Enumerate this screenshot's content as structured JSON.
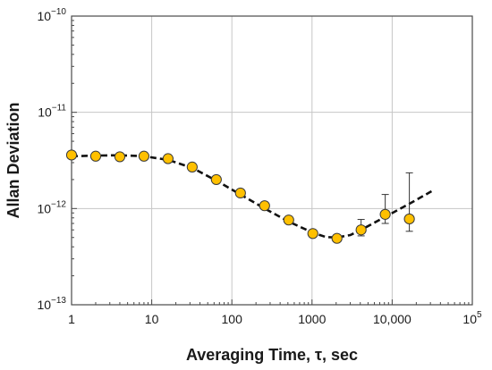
{
  "chart_data": {
    "type": "scatter",
    "title": "",
    "xlabel": "Averaging Time, τ, sec",
    "ylabel": "Allan Deviation",
    "x_scale": "log",
    "y_scale": "log",
    "xlim": [
      1,
      100000
    ],
    "ylim": [
      1e-13,
      1e-10
    ],
    "grid": true,
    "legend": "none",
    "x_ticks": [
      {
        "value": 1,
        "label": "1"
      },
      {
        "value": 10,
        "label": "10"
      },
      {
        "value": 100,
        "label": "100"
      },
      {
        "value": 1000,
        "label": "1000"
      },
      {
        "value": 10000,
        "label": "10,000"
      },
      {
        "value": 100000,
        "base": "10",
        "exp": "5"
      }
    ],
    "y_ticks": [
      {
        "value": 1e-13,
        "base": "10",
        "exp": "−13"
      },
      {
        "value": 1e-12,
        "base": "10",
        "exp": "−12"
      },
      {
        "value": 1e-11,
        "base": "10",
        "exp": "−11"
      },
      {
        "value": 1e-10,
        "base": "10",
        "exp": "−10"
      }
    ],
    "series": [
      {
        "kind": "points",
        "color": "#FFC000",
        "points": [
          {
            "x": 1,
            "y": 3.6e-12
          },
          {
            "x": 2,
            "y": 3.5e-12
          },
          {
            "x": 4,
            "y": 3.45e-12
          },
          {
            "x": 8,
            "y": 3.5e-12
          },
          {
            "x": 16,
            "y": 3.3e-12
          },
          {
            "x": 32,
            "y": 2.7e-12
          },
          {
            "x": 64,
            "y": 2e-12
          },
          {
            "x": 128,
            "y": 1.45e-12
          },
          {
            "x": 256,
            "y": 1.07e-12
          },
          {
            "x": 512,
            "y": 7.6e-13
          },
          {
            "x": 1024,
            "y": 5.5e-13
          },
          {
            "x": 2048,
            "y": 4.9e-13
          },
          {
            "x": 4096,
            "y": 6e-13,
            "err_low": 5.2e-13,
            "err_high": 7.7e-13
          },
          {
            "x": 8192,
            "y": 8.7e-13,
            "err_low": 7e-13,
            "err_high": 1.4e-12
          },
          {
            "x": 16384,
            "y": 7.8e-13,
            "err_low": 5.8e-13,
            "err_high": 2.35e-12
          }
        ]
      },
      {
        "kind": "fit",
        "style": "dashed",
        "color": "#111111",
        "points": [
          {
            "x": 1,
            "y": 3.5e-12
          },
          {
            "x": 2,
            "y": 3.55e-12
          },
          {
            "x": 4,
            "y": 3.58e-12
          },
          {
            "x": 8,
            "y": 3.5e-12
          },
          {
            "x": 16,
            "y": 3.2e-12
          },
          {
            "x": 32,
            "y": 2.65e-12
          },
          {
            "x": 64,
            "y": 1.95e-12
          },
          {
            "x": 128,
            "y": 1.4e-12
          },
          {
            "x": 256,
            "y": 1e-12
          },
          {
            "x": 512,
            "y": 7.3e-13
          },
          {
            "x": 1024,
            "y": 5.6e-13
          },
          {
            "x": 1500,
            "y": 5.05e-13
          },
          {
            "x": 2048,
            "y": 5e-13
          },
          {
            "x": 3000,
            "y": 5.3e-13
          },
          {
            "x": 4096,
            "y": 6e-13
          },
          {
            "x": 8192,
            "y": 8.2e-13
          },
          {
            "x": 16384,
            "y": 1.12e-12
          },
          {
            "x": 32768,
            "y": 1.55e-12
          }
        ]
      }
    ]
  }
}
